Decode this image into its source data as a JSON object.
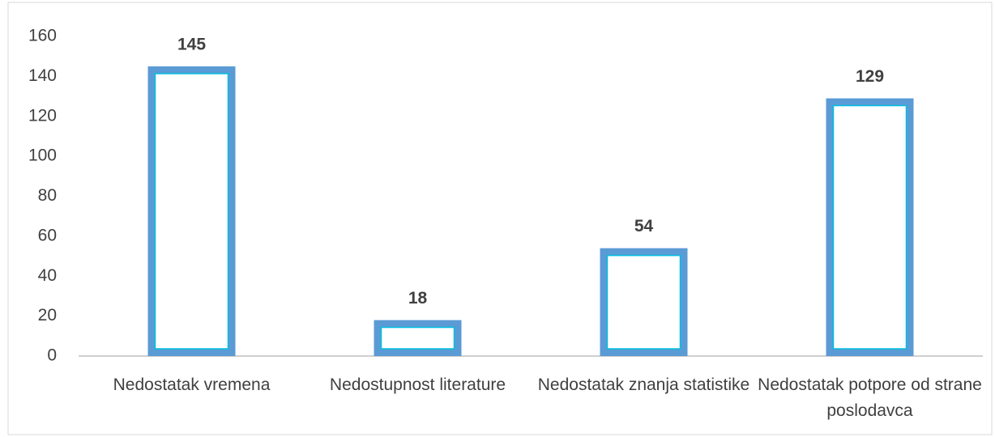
{
  "chart_data": {
    "type": "bar",
    "categories": [
      "Nedostatak vremena",
      "Nedostupnost literature",
      "Nedostatak znanja statistike",
      "Nedostatak potpore od strane poslodavca"
    ],
    "values": [
      145,
      18,
      54,
      129
    ],
    "color": "#5b9bd5",
    "ylim": [
      0,
      160
    ],
    "yticks": [
      0,
      20,
      40,
      60,
      80,
      100,
      120,
      140,
      160
    ],
    "grid": false
  }
}
